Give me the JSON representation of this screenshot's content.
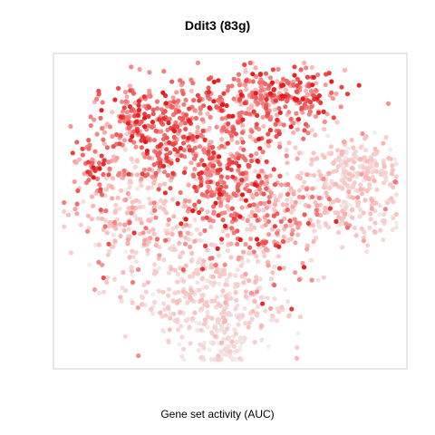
{
  "chart_data": {
    "type": "scatter",
    "title": "Ddit3 (83g)",
    "xlabel": "Gene set activity (AUC)",
    "ylabel": "",
    "axes_ticks": false,
    "grid": false,
    "color_scale": {
      "low": "#f0f0f0",
      "mid": "#fbb4b4",
      "high": "#e41a1c"
    },
    "clusters": [
      {
        "cx": 0.3,
        "cy": 0.78,
        "sx": 0.09,
        "sy": 0.07,
        "n": 320,
        "aucMean": 0.72,
        "aucSd": 0.15
      },
      {
        "cx": 0.62,
        "cy": 0.86,
        "sx": 0.1,
        "sy": 0.05,
        "n": 300,
        "aucMean": 0.7,
        "aucSd": 0.18
      },
      {
        "cx": 0.46,
        "cy": 0.62,
        "sx": 0.07,
        "sy": 0.1,
        "n": 260,
        "aucMean": 0.66,
        "aucSd": 0.18
      },
      {
        "cx": 0.24,
        "cy": 0.48,
        "sx": 0.08,
        "sy": 0.12,
        "n": 260,
        "aucMean": 0.38,
        "aucSd": 0.2
      },
      {
        "cx": 0.6,
        "cy": 0.5,
        "sx": 0.07,
        "sy": 0.12,
        "n": 240,
        "aucMean": 0.55,
        "aucSd": 0.22
      },
      {
        "cx": 0.82,
        "cy": 0.56,
        "sx": 0.09,
        "sy": 0.1,
        "n": 280,
        "aucMean": 0.3,
        "aucSd": 0.15
      },
      {
        "cx": 0.45,
        "cy": 0.22,
        "sx": 0.1,
        "sy": 0.09,
        "n": 340,
        "aucMean": 0.22,
        "aucSd": 0.12
      },
      {
        "cx": 0.48,
        "cy": 0.08,
        "sx": 0.04,
        "sy": 0.04,
        "n": 60,
        "aucMean": 0.08,
        "aucSd": 0.06
      },
      {
        "cx": 0.88,
        "cy": 0.64,
        "sx": 0.05,
        "sy": 0.03,
        "n": 80,
        "aucMean": 0.25,
        "aucSd": 0.12
      },
      {
        "cx": 0.12,
        "cy": 0.64,
        "sx": 0.04,
        "sy": 0.05,
        "n": 60,
        "aucMean": 0.7,
        "aucSd": 0.18
      }
    ]
  }
}
